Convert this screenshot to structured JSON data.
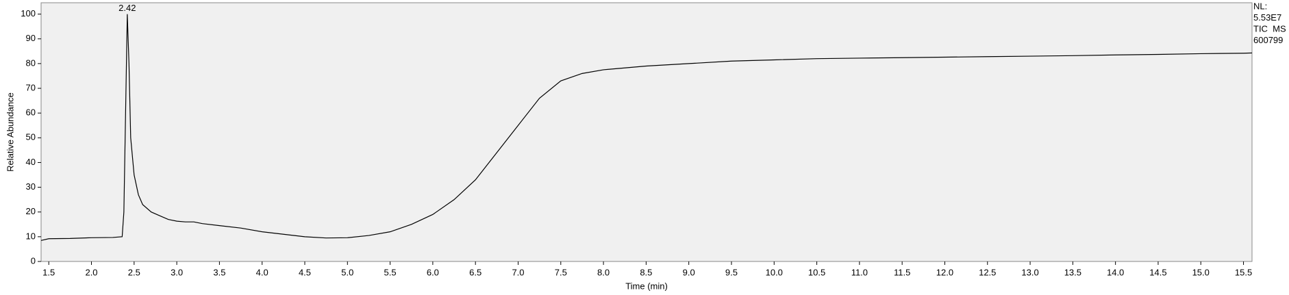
{
  "chart_data": {
    "type": "line",
    "x_label": "Time (min)",
    "y_label": "Relative Abundance",
    "annotation": "2.42",
    "info": [
      "NL:",
      "5.53E7",
      "TIC  MS",
      "600799"
    ],
    "color": "#000000",
    "background": "#f0f0f0",
    "x": [
      1.41,
      1.5,
      1.75,
      2.0,
      2.25,
      2.36,
      2.38,
      2.4,
      2.42,
      2.44,
      2.46,
      2.5,
      2.55,
      2.6,
      2.7,
      2.8,
      2.9,
      3.0,
      3.1,
      3.2,
      3.3,
      3.5,
      3.75,
      4.0,
      4.25,
      4.5,
      4.75,
      5.0,
      5.25,
      5.5,
      5.75,
      6.0,
      6.25,
      6.5,
      6.75,
      7.0,
      7.25,
      7.5,
      7.75,
      8.0,
      8.5,
      9.0,
      9.5,
      10.0,
      10.5,
      11.0,
      11.5,
      12.0,
      12.5,
      13.0,
      13.5,
      14.0,
      14.5,
      15.0,
      15.5,
      15.6
    ],
    "values": [
      8.5,
      9.2,
      9.3,
      9.6,
      9.7,
      10,
      20,
      60,
      100,
      80,
      50,
      35,
      27,
      23,
      20,
      18.5,
      17,
      16.3,
      16,
      16,
      15.3,
      14.5,
      13.5,
      12,
      11,
      10,
      9.5,
      9.6,
      10.5,
      12,
      15,
      19,
      25,
      33,
      44,
      55,
      66,
      73,
      76,
      77.5,
      79,
      80,
      81,
      81.5,
      82,
      82.2,
      82.4,
      82.6,
      82.8,
      83,
      83.2,
      83.5,
      83.7,
      84,
      84.2,
      84.3
    ],
    "xlim": [
      1.41,
      15.6
    ],
    "ylim": [
      0,
      104.6
    ],
    "xticks": [
      1.5,
      {
        "value": 2,
        "label": "2.0"
      },
      2.5,
      {
        "value": 3,
        "label": "3.0"
      },
      3.5,
      {
        "value": 4,
        "label": "4.0"
      },
      4.5,
      {
        "value": 5,
        "label": "5.0"
      },
      5.5,
      {
        "value": 6,
        "label": "6.0"
      },
      6.5,
      {
        "value": 7,
        "label": "7.0"
      },
      7.5,
      {
        "value": 8,
        "label": "8.0"
      },
      8.5,
      {
        "value": 9,
        "label": "9.0"
      },
      9.5,
      {
        "value": 10,
        "label": "10.0"
      },
      10.5,
      {
        "value": 11,
        "label": "11.0"
      },
      11.5,
      {
        "value": 12,
        "label": "12.0"
      },
      12.5,
      {
        "value": 13,
        "label": "13.0"
      },
      13.5,
      {
        "value": 14,
        "label": "14.0"
      },
      14.5,
      {
        "value": 15,
        "label": "15.0"
      },
      15.5
    ],
    "yticks": [
      0,
      10,
      20,
      30,
      40,
      50,
      60,
      70,
      80,
      90,
      100
    ]
  }
}
